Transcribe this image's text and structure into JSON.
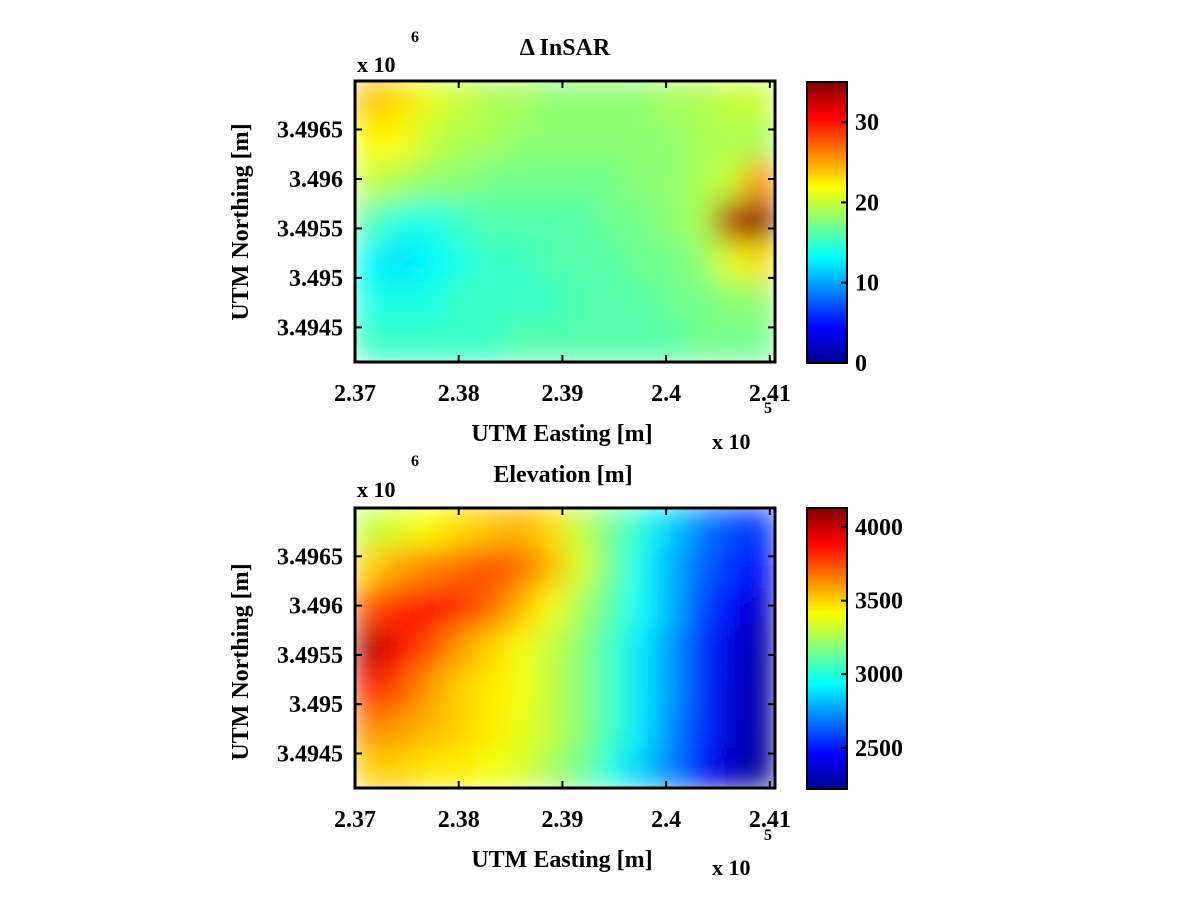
{
  "chart_data": [
    {
      "type": "heatmap",
      "title": "Δ InSAR",
      "xlabel": "UTM Easting [m]",
      "ylabel": "UTM Northing [m]",
      "x_multiplier": "x 10",
      "x_exponent": "5",
      "y_multiplier": "x 10",
      "y_exponent": "6",
      "xlim": [
        2.37,
        2.4105
      ],
      "ylim": [
        3.49415,
        3.49699
      ],
      "xticks": [
        {
          "value": 2.37,
          "label": "2.37"
        },
        {
          "value": 2.38,
          "label": "2.38"
        },
        {
          "value": 2.39,
          "label": "2.39"
        },
        {
          "value": 2.4,
          "label": "2.4"
        },
        {
          "value": 2.41,
          "label": "2.41"
        }
      ],
      "yticks": [
        {
          "value": 3.4945,
          "label": "3.4945"
        },
        {
          "value": 3.495,
          "label": "3.495"
        },
        {
          "value": 3.4955,
          "label": "3.4955"
        },
        {
          "value": 3.496,
          "label": "3.496"
        },
        {
          "value": 3.4965,
          "label": "3.4965"
        }
      ],
      "colormap": "jet",
      "clim": [
        0,
        35
      ],
      "colorbar_ticks": [
        {
          "value": 0,
          "label": "0"
        },
        {
          "value": 10,
          "label": "10"
        },
        {
          "value": 20,
          "label": "20"
        },
        {
          "value": 30,
          "label": "30"
        }
      ],
      "z_grid": {
        "rows_top_to_bottom": true,
        "values": [
          [
            24,
            23,
            21,
            20,
            19,
            19,
            18,
            18,
            18,
            18,
            19,
            19,
            20,
            20
          ],
          [
            22,
            22,
            20,
            19,
            19,
            18,
            18,
            18,
            18,
            18,
            18,
            19,
            19,
            19
          ],
          [
            20,
            19,
            18,
            18,
            17,
            17,
            17,
            17,
            17,
            18,
            18,
            19,
            20,
            26
          ],
          [
            16,
            14,
            14,
            15,
            16,
            16,
            16,
            16,
            17,
            17,
            18,
            19,
            33,
            35
          ],
          [
            13,
            12,
            13,
            14,
            15,
            15,
            16,
            16,
            16,
            17,
            17,
            18,
            21,
            23
          ],
          [
            14,
            14,
            14,
            15,
            15,
            15,
            15,
            16,
            16,
            16,
            17,
            17,
            18,
            18
          ],
          [
            15,
            15,
            15,
            15,
            15,
            16,
            16,
            16,
            16,
            16,
            16,
            17,
            17,
            17
          ]
        ]
      }
    },
    {
      "type": "heatmap",
      "title": "Elevation [m]",
      "xlabel": "UTM Easting [m]",
      "ylabel": "UTM Northing [m]",
      "x_multiplier": "x 10",
      "x_exponent": "5",
      "y_multiplier": "x 10",
      "y_exponent": "6",
      "xlim": [
        2.37,
        2.4105
      ],
      "ylim": [
        3.49415,
        3.49699
      ],
      "xticks": [
        {
          "value": 2.37,
          "label": "2.37"
        },
        {
          "value": 2.38,
          "label": "2.38"
        },
        {
          "value": 2.39,
          "label": "2.39"
        },
        {
          "value": 2.4,
          "label": "2.4"
        },
        {
          "value": 2.41,
          "label": "2.41"
        }
      ],
      "yticks": [
        {
          "value": 3.4945,
          "label": "3.4945"
        },
        {
          "value": 3.495,
          "label": "3.495"
        },
        {
          "value": 3.4955,
          "label": "3.4955"
        },
        {
          "value": 3.496,
          "label": "3.496"
        },
        {
          "value": 3.4965,
          "label": "3.4965"
        }
      ],
      "colormap": "jet",
      "clim": [
        2220,
        4130
      ],
      "colorbar_ticks": [
        {
          "value": 2500,
          "label": "2500"
        },
        {
          "value": 3000,
          "label": "3000"
        },
        {
          "value": 3500,
          "label": "3500"
        },
        {
          "value": 4000,
          "label": "4000"
        }
      ],
      "z_grid": {
        "rows_top_to_bottom": true,
        "values": [
          [
            3300,
            3350,
            3420,
            3480,
            3520,
            3560,
            3480,
            3300,
            3150,
            3000,
            2850,
            2700,
            2600,
            2550
          ],
          [
            3500,
            3600,
            3650,
            3700,
            3750,
            3700,
            3550,
            3350,
            3150,
            2950,
            2800,
            2650,
            2550,
            2450
          ],
          [
            3750,
            3820,
            3880,
            3820,
            3700,
            3550,
            3400,
            3250,
            3100,
            2950,
            2800,
            2600,
            2450,
            2350
          ],
          [
            4050,
            3900,
            3750,
            3600,
            3500,
            3400,
            3300,
            3200,
            3050,
            2900,
            2750,
            2550,
            2400,
            2300
          ],
          [
            3850,
            3750,
            3600,
            3500,
            3450,
            3400,
            3300,
            3200,
            3050,
            2900,
            2750,
            2550,
            2380,
            2280
          ],
          [
            3650,
            3600,
            3550,
            3500,
            3450,
            3380,
            3300,
            3200,
            3050,
            2900,
            2720,
            2550,
            2380,
            2280
          ],
          [
            3500,
            3500,
            3450,
            3450,
            3400,
            3350,
            3250,
            3150,
            3000,
            2850,
            2700,
            2500,
            2350,
            2250
          ]
        ]
      }
    }
  ]
}
